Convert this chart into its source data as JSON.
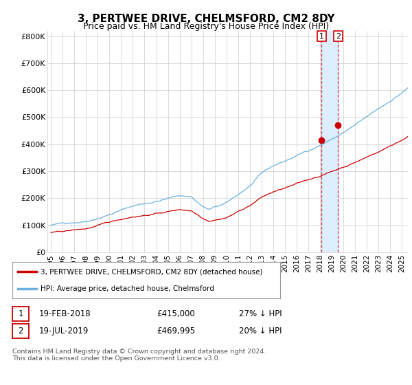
{
  "title": "3, PERTWEE DRIVE, CHELMSFORD, CM2 8DY",
  "subtitle": "Price paid vs. HM Land Registry's House Price Index (HPI)",
  "ylim": [
    0,
    820000
  ],
  "yticks": [
    0,
    100000,
    200000,
    300000,
    400000,
    500000,
    600000,
    700000,
    800000
  ],
  "ytick_labels": [
    "£0",
    "£100K",
    "£200K",
    "£300K",
    "£400K",
    "£500K",
    "£600K",
    "£700K",
    "£800K"
  ],
  "hpi_color": "#6ab0e0",
  "price_color": "#CC0000",
  "dot_color": "#CC0000",
  "marker1_year": 2018,
  "marker1_month": 2,
  "marker1_value": 415000,
  "marker2_year": 2019,
  "marker2_month": 7,
  "marker2_value": 469995,
  "shade_color": "#ddeeff",
  "legend_label1": "3, PERTWEE DRIVE, CHELMSFORD, CM2 8DY (detached house)",
  "legend_label2": "HPI: Average price, detached house, Chelmsford",
  "table_row1": [
    "1",
    "19-FEB-2018",
    "£415,000",
    "27% ↓ HPI"
  ],
  "table_row2": [
    "2",
    "19-JUL-2019",
    "£469,995",
    "20% ↓ HPI"
  ],
  "footnote": "Contains HM Land Registry data © Crown copyright and database right 2024.\nThis data is licensed under the Open Government Licence v3.0.",
  "background_color": "#ffffff",
  "grid_color": "#cccccc"
}
